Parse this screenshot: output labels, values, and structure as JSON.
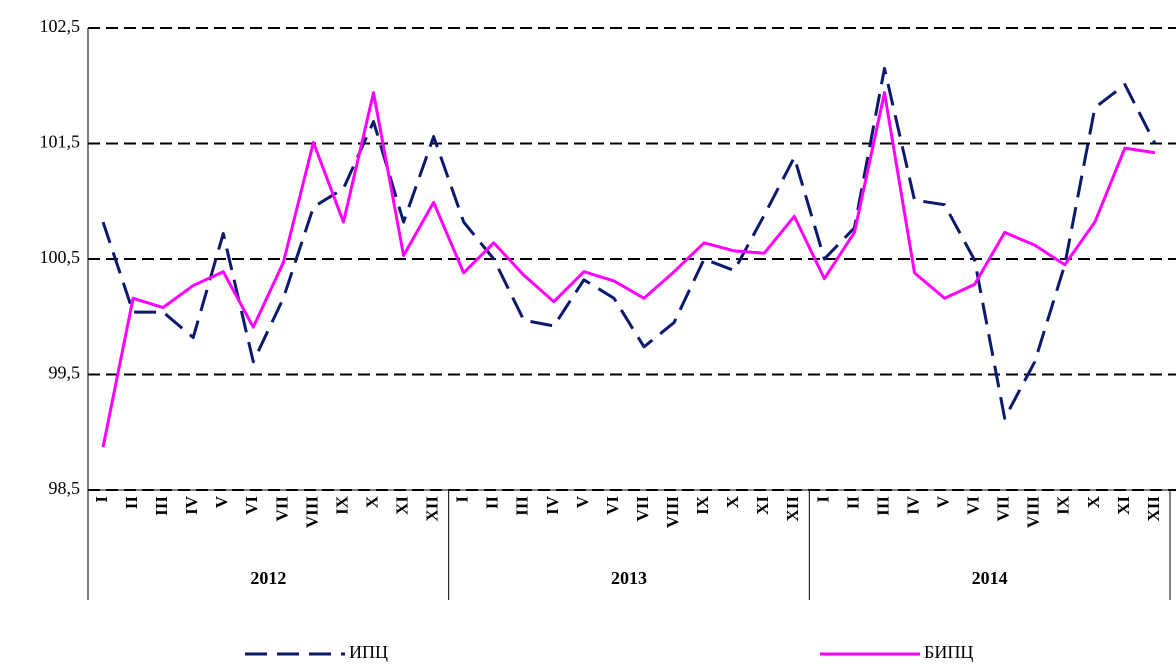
{
  "chart_data": {
    "type": "line",
    "categories": [
      "I",
      "II",
      "III",
      "IV",
      "V",
      "VI",
      "VII",
      "VIII",
      "IX",
      "X",
      "XI",
      "XII",
      "I",
      "II",
      "III",
      "IV",
      "V",
      "VI",
      "VII",
      "VIII",
      "IX",
      "X",
      "XI",
      "XII",
      "I",
      "II",
      "III",
      "IV",
      "V",
      "VI",
      "VII",
      "VIII",
      "IX",
      "X",
      "XI",
      "XII"
    ],
    "groups": [
      "2012",
      "2013",
      "2014"
    ],
    "series": [
      {
        "name": "ИПЦ",
        "color": "#0c1a6e",
        "dashed": true,
        "values": [
          100.82,
          100.04,
          100.04,
          99.82,
          100.72,
          99.61,
          100.16,
          100.95,
          101.11,
          101.69,
          100.82,
          101.56,
          100.82,
          100.5,
          99.97,
          99.92,
          100.32,
          100.16,
          99.74,
          99.95,
          100.5,
          100.4,
          100.88,
          101.38,
          100.5,
          100.77,
          102.15,
          101.01,
          100.97,
          100.49,
          99.12,
          99.61,
          100.45,
          101.81,
          102.01,
          101.5
        ]
      },
      {
        "name": "БИПЦ",
        "color": "#ff00ff",
        "dashed": false,
        "values": [
          98.87,
          100.16,
          100.08,
          100.27,
          100.39,
          99.91,
          100.47,
          101.51,
          100.82,
          101.94,
          100.53,
          100.99,
          100.38,
          100.64,
          100.36,
          100.13,
          100.39,
          100.31,
          100.16,
          100.39,
          100.64,
          100.57,
          100.55,
          100.87,
          100.33,
          100.73,
          101.94,
          100.38,
          100.16,
          100.28,
          100.73,
          100.62,
          100.45,
          100.82,
          101.46,
          101.42
        ]
      }
    ],
    "ylim": [
      98.5,
      102.5
    ],
    "yticks": [
      {
        "value": 98.5,
        "label": "98,5"
      },
      {
        "value": 99.5,
        "label": "99,5"
      },
      {
        "value": 100.5,
        "label": "100,5"
      },
      {
        "value": 101.5,
        "label": "101,5"
      },
      {
        "value": 102.5,
        "label": "102,5"
      }
    ],
    "grid": true,
    "legend": "bottom"
  }
}
